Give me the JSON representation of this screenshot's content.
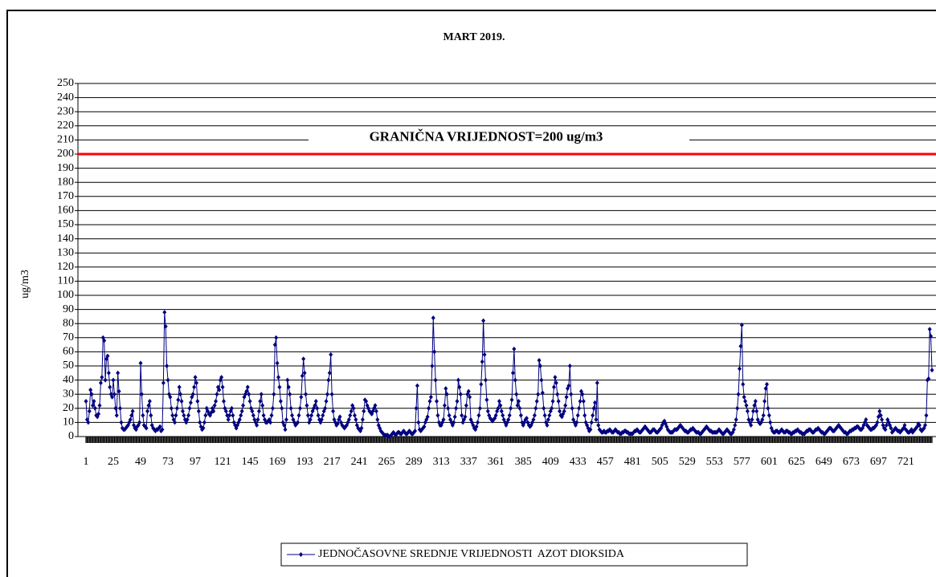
{
  "chart_data": {
    "type": "line",
    "title": "MART 2019.",
    "y_label": "ug/m3",
    "annotation": "GRANIČNA VRIJEDNOST=200 ug/m3",
    "limit": 200,
    "limit_color": "#ff0000",
    "xlim": [
      1,
      744
    ],
    "xticks": [
      1,
      25,
      49,
      73,
      97,
      121,
      145,
      169,
      193,
      217,
      241,
      265,
      289,
      313,
      337,
      361,
      385,
      409,
      433,
      457,
      481,
      505,
      529,
      553,
      577,
      601,
      625,
      649,
      673,
      697,
      721
    ],
    "ylim": [
      0,
      250
    ],
    "yticks": [
      0,
      10,
      20,
      30,
      40,
      50,
      60,
      70,
      80,
      90,
      100,
      110,
      120,
      130,
      140,
      150,
      160,
      170,
      180,
      190,
      200,
      210,
      220,
      230,
      240,
      250
    ],
    "grid": true,
    "legend": "bottom",
    "x": [
      1,
      2,
      3,
      4,
      5,
      6,
      7,
      8,
      9,
      10,
      11,
      12,
      13,
      14,
      15,
      16,
      17,
      18,
      19,
      20,
      21,
      22,
      23,
      24,
      25,
      26,
      27,
      28,
      29,
      30,
      31,
      32,
      33,
      34,
      35,
      36,
      37,
      38,
      39,
      40,
      41,
      42,
      43,
      44,
      45,
      46,
      47,
      48,
      49,
      50,
      51,
      52,
      53,
      54,
      55,
      56,
      57,
      58,
      59,
      60,
      61,
      62,
      63,
      64,
      65,
      66,
      67,
      68,
      69,
      70,
      71,
      72,
      73,
      74,
      75,
      76,
      77,
      78,
      79,
      80,
      81,
      82,
      83,
      84,
      85,
      86,
      87,
      88,
      89,
      90,
      91,
      92,
      93,
      94,
      95,
      96,
      97,
      98,
      99,
      100,
      101,
      102,
      103,
      104,
      105,
      106,
      107,
      108,
      109,
      110,
      111,
      112,
      113,
      114,
      115,
      116,
      117,
      118,
      119,
      120,
      121,
      122,
      123,
      124,
      125,
      126,
      127,
      128,
      129,
      130,
      131,
      132,
      133,
      134,
      135,
      136,
      137,
      138,
      139,
      140,
      141,
      142,
      143,
      144,
      145,
      146,
      147,
      148,
      149,
      150,
      151,
      152,
      153,
      154,
      155,
      156,
      157,
      158,
      159,
      160,
      161,
      162,
      163,
      164,
      165,
      166,
      167,
      168,
      169,
      170,
      171,
      172,
      173,
      174,
      175,
      176,
      177,
      178,
      179,
      180,
      181,
      182,
      183,
      184,
      185,
      186,
      187,
      188,
      189,
      190,
      191,
      192,
      193,
      194,
      195,
      196,
      197,
      198,
      199,
      200,
      201,
      202,
      203,
      204,
      205,
      206,
      207,
      208,
      209,
      210,
      211,
      212,
      213,
      214,
      215,
      216,
      217,
      218,
      219,
      220,
      221,
      222,
      223,
      224,
      225,
      226,
      227,
      228,
      229,
      230,
      231,
      232,
      233,
      234,
      235,
      236,
      237,
      238,
      239,
      240,
      241,
      242,
      243,
      244,
      245,
      246,
      247,
      248,
      249,
      250,
      251,
      252,
      253,
      254,
      255,
      256,
      257,
      258,
      259,
      260,
      261,
      262,
      263,
      264,
      265,
      266,
      267,
      268,
      269,
      270,
      271,
      272,
      273,
      274,
      275,
      276,
      277,
      278,
      279,
      280,
      281,
      282,
      283,
      284,
      285,
      286,
      287,
      288,
      289,
      290,
      291,
      292,
      293,
      294,
      295,
      296,
      297,
      298,
      299,
      300,
      301,
      302,
      303,
      304,
      305,
      306,
      307,
      308,
      309,
      310,
      311,
      312,
      313,
      314,
      315,
      316,
      317,
      318,
      319,
      320,
      321,
      322,
      323,
      324,
      325,
      326,
      327,
      328,
      329,
      330,
      331,
      332,
      333,
      334,
      335,
      336,
      337,
      338,
      339,
      340,
      341,
      342,
      343,
      344,
      345,
      346,
      347,
      348,
      349,
      350,
      351,
      352,
      353,
      354,
      355,
      356,
      357,
      358,
      359,
      360,
      361,
      362,
      363,
      364,
      365,
      366,
      367,
      368,
      369,
      370,
      371,
      372,
      373,
      374,
      375,
      376,
      377,
      378,
      379,
      380,
      381,
      382,
      383,
      384,
      385,
      386,
      387,
      388,
      389,
      390,
      391,
      392,
      393,
      394,
      395,
      396,
      397,
      398,
      399,
      400,
      401,
      402,
      403,
      404,
      405,
      406,
      407,
      408,
      409,
      410,
      411,
      412,
      413,
      414,
      415,
      416,
      417,
      418,
      419,
      420,
      421,
      422,
      423,
      424,
      425,
      426,
      427,
      428,
      429,
      430,
      431,
      432,
      433,
      434,
      435,
      436,
      437,
      438,
      439,
      440,
      441,
      442,
      443,
      444,
      445,
      446,
      447,
      448,
      449,
      450,
      451,
      452,
      453,
      454,
      455,
      456,
      457,
      458,
      459,
      460,
      461,
      462,
      463,
      464,
      465,
      466,
      467,
      468,
      469,
      470,
      471,
      472,
      473,
      474,
      475,
      476,
      477,
      478,
      479,
      480,
      481,
      482,
      483,
      484,
      485,
      486,
      487,
      488,
      489,
      490,
      491,
      492,
      493,
      494,
      495,
      496,
      497,
      498,
      499,
      500,
      501,
      502,
      503,
      504,
      505,
      506,
      507,
      508,
      509,
      510,
      511,
      512,
      513,
      514,
      515,
      516,
      517,
      518,
      519,
      520,
      521,
      522,
      523,
      524,
      525,
      526,
      527,
      528,
      529,
      530,
      531,
      532,
      533,
      534,
      535,
      536,
      537,
      538,
      539,
      540,
      541,
      542,
      543,
      544,
      545,
      546,
      547,
      548,
      549,
      550,
      551,
      552,
      553,
      554,
      555,
      556,
      557,
      558,
      559,
      560,
      561,
      562,
      563,
      564,
      565,
      566,
      567,
      568,
      569,
      570,
      571,
      572,
      573,
      574,
      575,
      576,
      577,
      578,
      579,
      580,
      581,
      582,
      583,
      584,
      585,
      586,
      587,
      588,
      589,
      590,
      591,
      592,
      593,
      594,
      595,
      596,
      597,
      598,
      599,
      600,
      601,
      602,
      603,
      604,
      605,
      606,
      607,
      608,
      609,
      610,
      611,
      612,
      613,
      614,
      615,
      616,
      617,
      618,
      619,
      620,
      621,
      622,
      623,
      624,
      625,
      626,
      627,
      628,
      629,
      630,
      631,
      632,
      633,
      634,
      635,
      636,
      637,
      638,
      639,
      640,
      641,
      642,
      643,
      644,
      645,
      646,
      647,
      648,
      649,
      650,
      651,
      652,
      653,
      654,
      655,
      656,
      657,
      658,
      659,
      660,
      661,
      662,
      663,
      664,
      665,
      666,
      667,
      668,
      669,
      670,
      671,
      672,
      673,
      674,
      675,
      676,
      677,
      678,
      679,
      680,
      681,
      682,
      683,
      684,
      685,
      686,
      687,
      688,
      689,
      690,
      691,
      692,
      693,
      694,
      695,
      696,
      697,
      698,
      699,
      700,
      701,
      702,
      703,
      704,
      705,
      706,
      707,
      708,
      709,
      710,
      711,
      712,
      713,
      714,
      715,
      716,
      717,
      718,
      719,
      720,
      721,
      722,
      723,
      724,
      725,
      726,
      727,
      728,
      729,
      730,
      731,
      732,
      733,
      734,
      735,
      736,
      737,
      738,
      739,
      740,
      741,
      742,
      743,
      744
    ],
    "series": [
      {
        "name": "JEDNOČASOVNE SREDNJE VRIJEDNOSTI  AZOT DIOKSIDA",
        "color": "#000080",
        "values": [
          25,
          12,
          10,
          18,
          33,
          30,
          22,
          25,
          20,
          15,
          14,
          16,
          22,
          38,
          42,
          70,
          68,
          40,
          55,
          57,
          45,
          35,
          30,
          28,
          40,
          30,
          20,
          15,
          45,
          32,
          20,
          10,
          6,
          5,
          5,
          6,
          7,
          8,
          10,
          12,
          15,
          18,
          8,
          6,
          5,
          7,
          8,
          10,
          52,
          30,
          15,
          8,
          7,
          6,
          18,
          22,
          25,
          15,
          8,
          6,
          5,
          4,
          5,
          5,
          6,
          7,
          4,
          5,
          38,
          88,
          78,
          50,
          40,
          30,
          28,
          20,
          15,
          12,
          10,
          15,
          20,
          26,
          35,
          30,
          25,
          18,
          15,
          12,
          10,
          12,
          15,
          20,
          24,
          28,
          30,
          35,
          42,
          38,
          25,
          18,
          10,
          7,
          5,
          6,
          10,
          15,
          20,
          18,
          16,
          15,
          17,
          20,
          18,
          22,
          25,
          30,
          35,
          33,
          40,
          42,
          35,
          25,
          20,
          18,
          15,
          12,
          15,
          18,
          20,
          15,
          10,
          8,
          6,
          8,
          10,
          12,
          15,
          18,
          22,
          28,
          30,
          32,
          35,
          30,
          25,
          20,
          18,
          15,
          12,
          10,
          8,
          12,
          18,
          25,
          30,
          22,
          15,
          12,
          10,
          10,
          11,
          12,
          10,
          15,
          20,
          30,
          65,
          70,
          52,
          42,
          35,
          25,
          20,
          10,
          8,
          5,
          12,
          40,
          35,
          30,
          20,
          15,
          12,
          10,
          8,
          9,
          10,
          15,
          20,
          28,
          43,
          55,
          45,
          30,
          22,
          15,
          10,
          12,
          15,
          18,
          20,
          22,
          25,
          20,
          15,
          12,
          10,
          12,
          15,
          18,
          20,
          25,
          30,
          40,
          45,
          58,
          30,
          18,
          12,
          10,
          8,
          9,
          12,
          14,
          10,
          8,
          7,
          6,
          7,
          8,
          10,
          12,
          15,
          18,
          22,
          20,
          15,
          12,
          8,
          6,
          5,
          4,
          6,
          12,
          18,
          26,
          25,
          22,
          20,
          18,
          17,
          16,
          18,
          20,
          22,
          18,
          12,
          8,
          6,
          4,
          3,
          2,
          1,
          1,
          1,
          1,
          0,
          0,
          1,
          2,
          3,
          2,
          1,
          2,
          3,
          3,
          2,
          2,
          3,
          4,
          3,
          2,
          2,
          3,
          4,
          3,
          2,
          2,
          3,
          4,
          20,
          36,
          10,
          5,
          4,
          5,
          6,
          7,
          10,
          12,
          14,
          20,
          25,
          28,
          50,
          84,
          60,
          40,
          25,
          15,
          10,
          8,
          8,
          10,
          12,
          22,
          34,
          30,
          20,
          15,
          12,
          10,
          8,
          10,
          14,
          20,
          25,
          40,
          35,
          30,
          15,
          10,
          12,
          14,
          22,
          30,
          32,
          28,
          12,
          10,
          8,
          6,
          5,
          7,
          10,
          15,
          20,
          37,
          53,
          82,
          58,
          40,
          26,
          18,
          15,
          13,
          12,
          11,
          12,
          13,
          15,
          18,
          20,
          25,
          22,
          18,
          15,
          12,
          10,
          8,
          10,
          12,
          15,
          20,
          26,
          45,
          62,
          40,
          30,
          22,
          25,
          20,
          15,
          10,
          8,
          10,
          12,
          13,
          10,
          8,
          7,
          8,
          10,
          12,
          15,
          20,
          25,
          30,
          54,
          50,
          40,
          31,
          20,
          15,
          10,
          8,
          12,
          15,
          18,
          20,
          25,
          35,
          42,
          38,
          30,
          25,
          18,
          15,
          14,
          16,
          18,
          22,
          28,
          34,
          36,
          50,
          30,
          20,
          12,
          10,
          8,
          10,
          15,
          20,
          25,
          32,
          30,
          25,
          15,
          10,
          8,
          6,
          4,
          5,
          10,
          15,
          20,
          24,
          12,
          38,
          8,
          5,
          4,
          3,
          3,
          4,
          3,
          3,
          4,
          4,
          5,
          4,
          3,
          3,
          4,
          5,
          4,
          3,
          3,
          2,
          2,
          3,
          3,
          4,
          4,
          3,
          3,
          2,
          2,
          2,
          2,
          3,
          4,
          4,
          5,
          4,
          3,
          3,
          4,
          5,
          6,
          7,
          6,
          5,
          4,
          3,
          3,
          4,
          5,
          5,
          4,
          3,
          3,
          4,
          5,
          6,
          8,
          10,
          11,
          9,
          7,
          5,
          4,
          3,
          3,
          3,
          4,
          5,
          5,
          5,
          6,
          7,
          8,
          7,
          6,
          5,
          4,
          4,
          3,
          3,
          4,
          5,
          5,
          6,
          5,
          4,
          3,
          3,
          3,
          2,
          2,
          3,
          4,
          5,
          6,
          7,
          6,
          5,
          4,
          4,
          3,
          3,
          3,
          3,
          3,
          4,
          5,
          4,
          3,
          2,
          2,
          3,
          4,
          5,
          4,
          3,
          2,
          2,
          3,
          5,
          8,
          12,
          20,
          30,
          48,
          64,
          79,
          37,
          28,
          25,
          22,
          18,
          12,
          10,
          8,
          12,
          18,
          22,
          25,
          18,
          12,
          10,
          9,
          10,
          12,
          15,
          25,
          34,
          37,
          20,
          15,
          10,
          6,
          4,
          3,
          3,
          4,
          4,
          3,
          3,
          4,
          5,
          4,
          3,
          3,
          4,
          4,
          3,
          3,
          2,
          2,
          3,
          3,
          4,
          4,
          5,
          4,
          3,
          3,
          2,
          2,
          2,
          3,
          4,
          4,
          5,
          5,
          4,
          3,
          3,
          4,
          5,
          5,
          6,
          5,
          4,
          3,
          3,
          2,
          2,
          3,
          4,
          5,
          6,
          6,
          5,
          4,
          4,
          5,
          6,
          7,
          8,
          7,
          6,
          5,
          4,
          3,
          3,
          2,
          2,
          3,
          4,
          4,
          5,
          5,
          6,
          6,
          7,
          7,
          6,
          5,
          5,
          6,
          8,
          10,
          12,
          8,
          7,
          6,
          5,
          5,
          6,
          6,
          7,
          8,
          10,
          14,
          18,
          15,
          12,
          8,
          6,
          5,
          8,
          12,
          10,
          8,
          6,
          3,
          4,
          5,
          6,
          5,
          4,
          4,
          3,
          4,
          5,
          6,
          8,
          5,
          4,
          3,
          3,
          4,
          5,
          3,
          4,
          5,
          6,
          7,
          9,
          8,
          5,
          4,
          5,
          6,
          8,
          15,
          40,
          41,
          76,
          71,
          47
        ]
      }
    ]
  }
}
